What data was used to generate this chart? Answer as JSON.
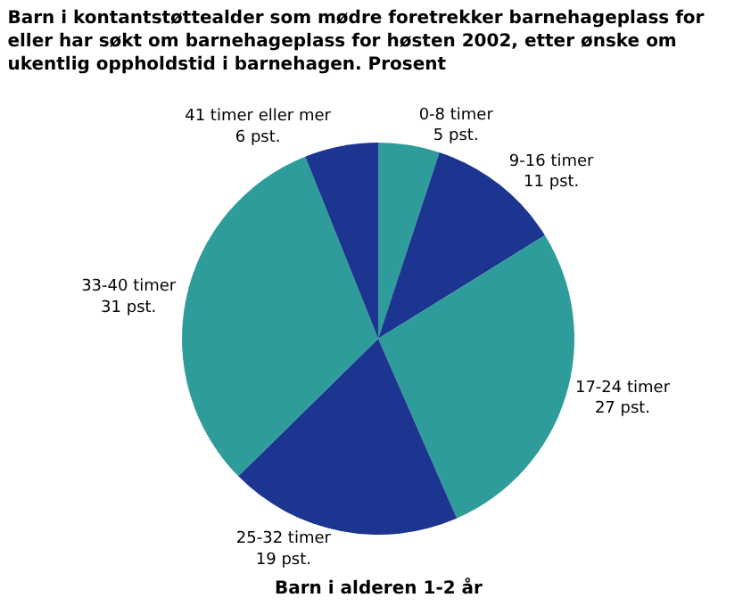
{
  "chart_data": {
    "type": "pie",
    "title": "Barn i kontantstøttealder som mødre foretrekker barnehageplass for eller har søkt om barnehageplass for høsten 2002, etter ønske om ukentlig oppholdstid i barnehagen. Prosent",
    "categories": [
      "0-8 timer",
      "9-16 timer",
      "17-24 timer",
      "25-32 timer",
      "33-40 timer",
      "41 timer eller mer"
    ],
    "values": [
      5,
      11,
      27,
      19,
      31,
      6
    ],
    "value_labels": [
      "5 pst.",
      "11 pst.",
      "27 pst.",
      "19 pst.",
      "31 pst.",
      "6 pst."
    ],
    "colors": [
      "#2e9c9a",
      "#1b3590",
      "#2e9c9a",
      "#1b3590",
      "#2e9c9a",
      "#1b3590"
    ],
    "annotations": [
      "Barn i alderen 1-2 år"
    ],
    "legend": false
  }
}
